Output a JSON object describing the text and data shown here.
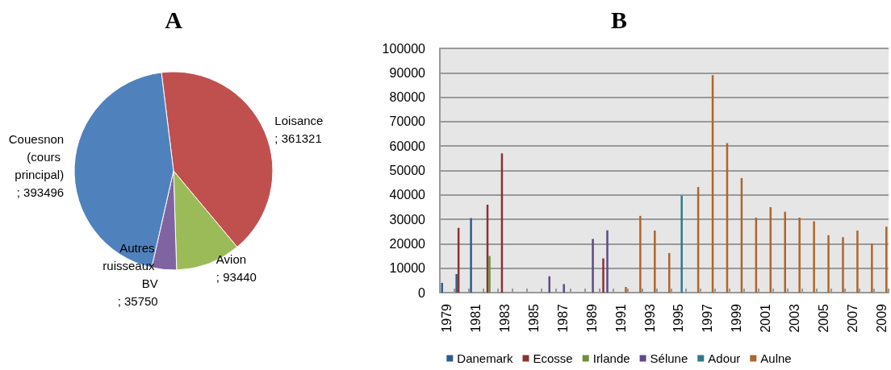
{
  "chart_data": [
    {
      "type": "pie",
      "title": "A",
      "categories": [
        "Loisance",
        "Avion",
        "Autres ruisseaux BV",
        "Couesnon (cours principal)"
      ],
      "values": [
        361321,
        93440,
        35750,
        393496
      ],
      "colors": [
        "#c0504d",
        "#9bbb59",
        "#8064a2",
        "#4f81bd"
      ],
      "value_labels": [
        "; 361321",
        "; 93440",
        "; 35750",
        "; 393496"
      ],
      "legend": false
    },
    {
      "type": "bar",
      "title": "B",
      "categories": [
        "1979",
        null,
        "1981",
        null,
        "1983",
        null,
        "1985",
        null,
        "1987",
        null,
        "1989",
        null,
        "1991",
        null,
        "1993",
        null,
        "1995",
        null,
        "1997",
        null,
        "1999",
        null,
        "2001",
        null,
        "2003",
        null,
        "2005",
        null,
        "2007",
        null,
        "2009"
      ],
      "series": [
        {
          "name": "Danemark",
          "color": "#2f5b8f",
          "values": [
            4000,
            7600,
            30500,
            null,
            null,
            null,
            null,
            null,
            null,
            null,
            null,
            null,
            null,
            null,
            null,
            null,
            null,
            null,
            null,
            null,
            null,
            null,
            null,
            null,
            null,
            null,
            null,
            null,
            null,
            null,
            null
          ]
        },
        {
          "name": "Ecosse",
          "color": "#8b3232",
          "values": [
            null,
            26500,
            null,
            36000,
            57000,
            null,
            null,
            null,
            null,
            null,
            null,
            14000,
            null,
            null,
            null,
            null,
            null,
            null,
            null,
            null,
            null,
            null,
            null,
            null,
            null,
            null,
            null,
            null,
            null,
            null,
            null
          ]
        },
        {
          "name": "Irlande",
          "color": "#6f8f3a",
          "values": [
            null,
            null,
            null,
            15000,
            null,
            null,
            null,
            null,
            null,
            null,
            null,
            null,
            null,
            null,
            null,
            null,
            null,
            null,
            null,
            null,
            null,
            null,
            null,
            null,
            null,
            null,
            null,
            null,
            null,
            null,
            null
          ]
        },
        {
          "name": "Sélune",
          "color": "#5f4a85",
          "values": [
            null,
            null,
            null,
            null,
            null,
            null,
            null,
            6700,
            3500,
            null,
            22000,
            25500,
            null,
            null,
            null,
            null,
            null,
            null,
            null,
            null,
            null,
            null,
            null,
            null,
            null,
            null,
            null,
            null,
            null,
            null,
            null
          ]
        },
        {
          "name": "Adour",
          "color": "#2c7a8c",
          "values": [
            null,
            null,
            null,
            null,
            null,
            null,
            null,
            null,
            null,
            null,
            null,
            null,
            null,
            null,
            null,
            null,
            39700,
            null,
            null,
            null,
            null,
            null,
            null,
            null,
            null,
            null,
            null,
            null,
            null,
            null,
            null
          ]
        },
        {
          "name": "Aulne",
          "color": "#b0652a",
          "values": [
            null,
            null,
            null,
            null,
            null,
            null,
            null,
            null,
            null,
            null,
            null,
            null,
            2300,
            31400,
            25400,
            16200,
            null,
            43200,
            89000,
            61200,
            46900,
            30700,
            35000,
            33100,
            30700,
            29200,
            23500,
            22700,
            25400,
            20100,
            27000
          ]
        }
      ],
      "ylim": [
        0,
        100000
      ],
      "yticks": [
        0,
        10000,
        20000,
        30000,
        40000,
        50000,
        60000,
        70000,
        80000,
        90000,
        100000
      ],
      "grid": "y",
      "legend": "bottom"
    }
  ]
}
